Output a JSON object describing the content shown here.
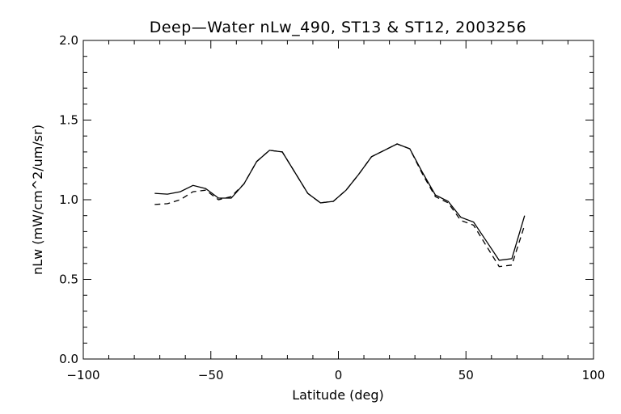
{
  "chart_data": {
    "type": "line",
    "title": "Deep—Water nLw_490, ST13 & ST12, 2003256",
    "xlabel": "Latitude (deg)",
    "ylabel": "nLw (mW/cm^2/um/sr)",
    "xlim": [
      -100,
      100
    ],
    "ylim": [
      0.0,
      2.0
    ],
    "x_ticks": [
      "−100",
      "−50",
      "0",
      "50",
      "100"
    ],
    "x_tick_values": [
      -100,
      -50,
      0,
      50,
      100
    ],
    "y_ticks": [
      "0.0",
      "0.5",
      "1.0",
      "1.5",
      "2.0"
    ],
    "y_tick_values": [
      0.0,
      0.5,
      1.0,
      1.5,
      2.0
    ],
    "grid": false,
    "series": [
      {
        "style": "solid",
        "x": [
          -72,
          -67,
          -62,
          -57,
          -52,
          -47,
          -42,
          -37,
          -32,
          -27,
          -22,
          -17,
          -12,
          -7,
          -2,
          3,
          8,
          13,
          18,
          23,
          28,
          33,
          38,
          43,
          48,
          53,
          58,
          63,
          68,
          73
        ],
        "y": [
          1.04,
          1.035,
          1.05,
          1.09,
          1.07,
          1.01,
          1.01,
          1.1,
          1.24,
          1.31,
          1.3,
          1.17,
          1.04,
          0.98,
          0.99,
          1.06,
          1.16,
          1.27,
          1.31,
          1.35,
          1.32,
          1.17,
          1.03,
          0.99,
          0.89,
          0.86,
          0.74,
          0.62,
          0.63,
          0.9
        ]
      },
      {
        "style": "dashed",
        "x": [
          -72,
          -67,
          -62,
          -57,
          -52,
          -47,
          -42,
          -37,
          -32,
          -27,
          -22,
          -17,
          -12,
          -7,
          -2,
          3,
          8,
          13,
          18,
          23,
          28,
          33,
          38,
          43,
          48,
          53,
          58,
          63,
          68,
          73
        ],
        "y": [
          0.97,
          0.975,
          1.0,
          1.05,
          1.06,
          1.0,
          1.02,
          1.1,
          1.24,
          1.31,
          1.3,
          1.17,
          1.04,
          0.98,
          0.99,
          1.06,
          1.16,
          1.27,
          1.31,
          1.35,
          1.32,
          1.16,
          1.02,
          0.98,
          0.87,
          0.84,
          0.71,
          0.58,
          0.59,
          0.84
        ]
      }
    ]
  }
}
